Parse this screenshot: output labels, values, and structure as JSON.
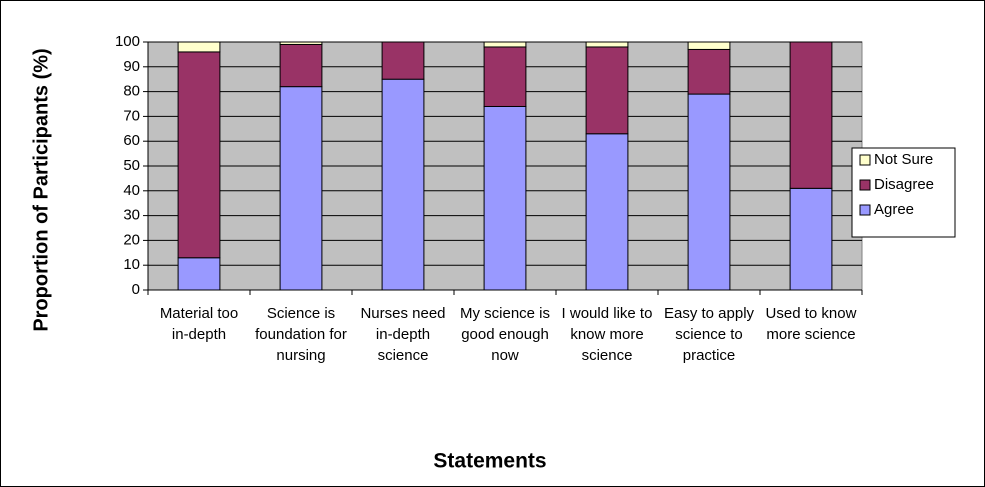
{
  "chart_data": {
    "type": "stacked_bar",
    "x_label": "Statements",
    "y_label": "Proportion of Participants (%)",
    "categories": [
      "Material too in-depth",
      "Science is foundation for nursing",
      "Nurses need in-depth science",
      "My science is good enough now",
      "I would like to know more science",
      "Easy to apply science to practice",
      "Used to know more science"
    ],
    "series": [
      {
        "name": "Agree",
        "color": "#9999ff",
        "values": [
          13,
          82,
          85,
          74,
          63,
          79,
          41
        ]
      },
      {
        "name": "Disagree",
        "color": "#993366",
        "values": [
          83,
          17,
          15,
          24,
          35,
          18,
          59
        ]
      },
      {
        "name": "Not Sure",
        "color": "#ffffcc",
        "values": [
          4,
          1,
          0,
          2,
          2,
          3,
          0
        ]
      }
    ],
    "ylim": [
      0,
      100
    ],
    "yticks": [
      0,
      10,
      20,
      30,
      40,
      50,
      60,
      70,
      80,
      90,
      100
    ],
    "grid": true,
    "plot_background": "#c0c0c0",
    "legend": "right"
  }
}
